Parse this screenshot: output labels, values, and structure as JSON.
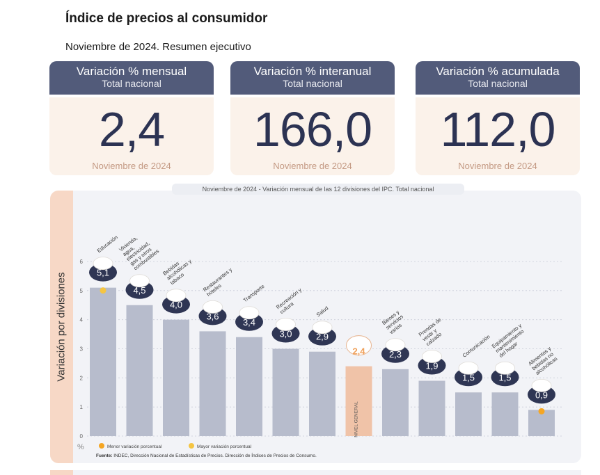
{
  "header": {
    "title": "Índice de precios al consumidor",
    "subtitle": "Noviembre de 2024. Resumen ejecutivo"
  },
  "cards": [
    {
      "label": "Variación % mensual",
      "scope": "Total nacional",
      "value": "2,4",
      "period": "Noviembre de 2024"
    },
    {
      "label": "Variación % interanual",
      "scope": "Total nacional",
      "value": "166,0",
      "period": "Noviembre de 2024"
    },
    {
      "label": "Variación % acumulada",
      "scope": "Total nacional",
      "value": "112,0",
      "period": "Noviembre de 2024"
    }
  ],
  "chart_panel": {
    "caption": "Noviembre de 2024 - Variación mensual de las 12 divisiones del IPC. Total nacional",
    "ylabel": "Variación por divisiones",
    "unit": "%",
    "legend": {
      "min_label": "Menor variación porcentual",
      "max_label": "Mayor variación porcentual"
    },
    "source_label": "Fuente:",
    "source": "INDEC, Dirección Nacional de Estadísticas de Precios. Dirección de Índices de Precios de Consumo."
  },
  "chart_data": {
    "type": "bar",
    "categories": [
      "Educación",
      "Vivienda, agua, electricidad, gas y otros combustibles",
      "Bebidas alcohólicas y tabaco",
      "Restaurantes y hoteles",
      "Transporte",
      "Recreación y cultura",
      "Salud",
      "NIVEL GENERAL",
      "Bienes y servicios varios",
      "Prendas de vestir y calzado",
      "Comunicación",
      "Equipamiento y mantenimiento del hogar",
      "Alimentos y bebidas no alcohólicas"
    ],
    "values": [
      5.1,
      4.5,
      4.0,
      3.6,
      3.4,
      3.0,
      2.9,
      2.4,
      2.3,
      1.9,
      1.5,
      1.5,
      0.9
    ],
    "value_labels": [
      "5,1",
      "4,5",
      "4,0",
      "3,6",
      "3,4",
      "3,0",
      "2,9",
      "2,4",
      "2,3",
      "1,9",
      "1,5",
      "1,5",
      "0,9"
    ],
    "yticks": [
      0,
      1,
      2,
      3,
      4,
      5,
      6
    ],
    "ylim": [
      0,
      6
    ],
    "highlight_index": 7,
    "max_index": 0,
    "min_index": 12,
    "colors": {
      "bar": "#b7bccc",
      "highlight_bar": "#f0c3a8",
      "badge": "#2f3654",
      "highlight_label": "#f0a05a",
      "min_marker": "#f5a623",
      "max_marker": "#f5c542",
      "grid": "#c9ccd8"
    }
  }
}
